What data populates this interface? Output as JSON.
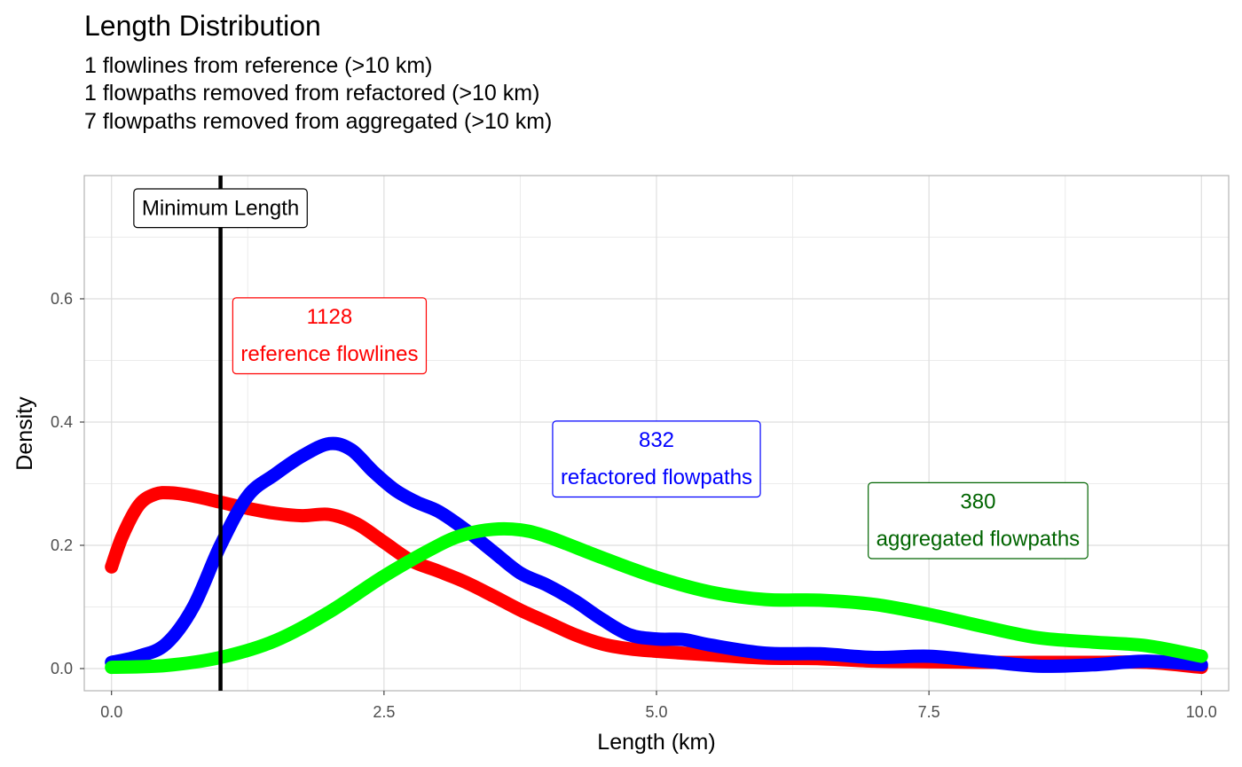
{
  "chart_data": {
    "type": "line",
    "title": "Length Distribution",
    "subtitle_lines": [
      "1 flowlines from reference (>10 km)",
      "1 flowpaths removed from refactored (>10 km)",
      "7 flowpaths removed from aggregated (>10 km)"
    ],
    "xlabel": "Length (km)",
    "ylabel": "Density",
    "xlim": [
      -0.25,
      10.25
    ],
    "ylim": [
      -0.036,
      0.8
    ],
    "x_ticks": [
      0,
      2.5,
      5,
      7.5,
      10
    ],
    "x_tick_labels": [
      "0.0",
      "2.5",
      "5.0",
      "7.5",
      "10.0"
    ],
    "y_ticks": [
      0,
      0.2,
      0.4,
      0.6
    ],
    "y_tick_labels": [
      "0.0",
      "0.2",
      "0.4",
      "0.6"
    ],
    "x_minor": [
      1.25,
      3.75,
      6.25,
      8.75
    ],
    "y_minor": [
      0.1,
      0.3,
      0.5,
      0.7
    ],
    "grid": true,
    "reference_line": {
      "x": 1,
      "label": "Minimum Length",
      "label_y": 0.747,
      "color": "#000000"
    },
    "series": [
      {
        "key": "reference",
        "color": "#ff0000",
        "x": [
          0,
          0.1,
          0.25,
          0.4,
          0.55,
          0.75,
          1.0,
          1.25,
          1.5,
          1.75,
          2.0,
          2.25,
          2.5,
          2.75,
          3.0,
          3.25,
          3.5,
          3.75,
          4.0,
          4.25,
          4.5,
          4.75,
          5.0,
          5.5,
          6.0,
          6.5,
          7.0,
          7.5,
          8.0,
          8.5,
          9.0,
          9.5,
          10.0
        ],
        "values": [
          0.165,
          0.215,
          0.265,
          0.283,
          0.285,
          0.28,
          0.27,
          0.26,
          0.252,
          0.248,
          0.25,
          0.235,
          0.205,
          0.175,
          0.158,
          0.14,
          0.118,
          0.095,
          0.075,
          0.055,
          0.04,
          0.032,
          0.028,
          0.022,
          0.017,
          0.016,
          0.012,
          0.011,
          0.01,
          0.01,
          0.01,
          0.01,
          0.002
        ]
      },
      {
        "key": "refactored",
        "color": "#0000ff",
        "x": [
          0,
          0.25,
          0.5,
          0.75,
          1.0,
          1.25,
          1.5,
          1.75,
          2.0,
          2.2,
          2.4,
          2.6,
          2.8,
          3.0,
          3.25,
          3.5,
          3.75,
          4.0,
          4.25,
          4.5,
          4.75,
          5.0,
          5.25,
          5.5,
          6.0,
          6.5,
          7.0,
          7.5,
          8.0,
          8.5,
          9.0,
          9.5,
          10.0
        ],
        "values": [
          0.01,
          0.02,
          0.04,
          0.1,
          0.2,
          0.28,
          0.315,
          0.345,
          0.365,
          0.355,
          0.32,
          0.29,
          0.27,
          0.255,
          0.225,
          0.19,
          0.155,
          0.135,
          0.11,
          0.08,
          0.055,
          0.048,
          0.047,
          0.038,
          0.025,
          0.024,
          0.018,
          0.02,
          0.012,
          0.004,
          0.006,
          0.012,
          0.006
        ]
      },
      {
        "key": "aggregated",
        "color": "#00ff00",
        "x": [
          0,
          0.5,
          1.0,
          1.5,
          2.0,
          2.5,
          3.0,
          3.25,
          3.5,
          3.75,
          4.0,
          4.5,
          5.0,
          5.5,
          6.0,
          6.5,
          7.0,
          7.5,
          8.0,
          8.5,
          9.0,
          9.5,
          10.0
        ],
        "values": [
          0.002,
          0.005,
          0.018,
          0.045,
          0.092,
          0.15,
          0.2,
          0.218,
          0.226,
          0.225,
          0.214,
          0.18,
          0.148,
          0.124,
          0.112,
          0.111,
          0.104,
          0.088,
          0.068,
          0.05,
          0.043,
          0.037,
          0.02
        ]
      }
    ],
    "annotations": [
      {
        "key": "reference",
        "count": "1128",
        "label": "reference flowlines",
        "x": 2.0,
        "y": 0.54,
        "color": "#ff0000"
      },
      {
        "key": "refactored",
        "count": "832",
        "label": "refactored flowpaths",
        "x": 5.0,
        "y": 0.34,
        "color": "#0000ff"
      },
      {
        "key": "aggregated",
        "count": "380",
        "label": "aggregated flowpaths",
        "x": 7.95,
        "y": 0.24,
        "color": "#006400"
      }
    ]
  }
}
